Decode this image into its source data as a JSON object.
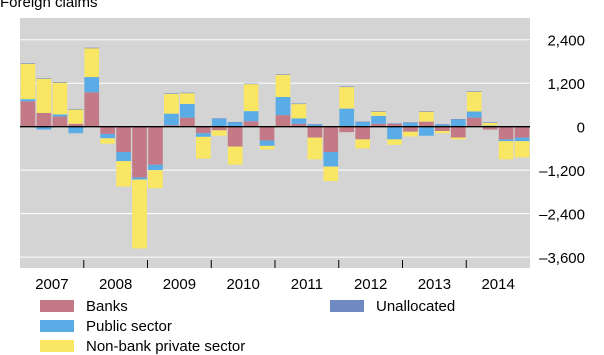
{
  "chart_data": {
    "type": "bar",
    "stacked": true,
    "title": "Foreign claims",
    "xlabel": "",
    "ylabel": "",
    "ylim": [
      -3900,
      3000
    ],
    "y_ticks": [
      2400,
      1200,
      0,
      -1200,
      -2400,
      -3600
    ],
    "y_tick_labels": [
      "2,400",
      "1,200",
      "0",
      "–1,200",
      "–2,400",
      "–3,600"
    ],
    "year_labels": [
      "2007",
      "2008",
      "2009",
      "2010",
      "2011",
      "2012",
      "2013",
      "2014"
    ],
    "grid": true,
    "legend_position": "bottom",
    "categories": [
      "2007 Q1",
      "2007 Q2",
      "2007 Q3",
      "2007 Q4",
      "2008 Q1",
      "2008 Q2",
      "2008 Q3",
      "2008 Q4",
      "2009 Q1",
      "2009 Q2",
      "2009 Q3",
      "2009 Q4",
      "2010 Q1",
      "2010 Q2",
      "2010 Q3",
      "2010 Q4",
      "2011 Q1",
      "2011 Q2",
      "2011 Q3",
      "2011 Q4",
      "2012 Q1",
      "2012 Q2",
      "2012 Q3",
      "2012 Q4",
      "2013 Q1",
      "2013 Q2",
      "2013 Q3",
      "2013 Q4",
      "2014 Q1",
      "2014 Q2",
      "2014 Q3",
      "2014 Q4"
    ],
    "series": [
      {
        "name": "Banks",
        "color": "#c47a86",
        "values": [
          700,
          380,
          280,
          80,
          950,
          -200,
          -700,
          -1400,
          -1050,
          40,
          250,
          -180,
          -100,
          -550,
          150,
          -380,
          320,
          80,
          -300,
          -700,
          -150,
          -350,
          80,
          80,
          -140,
          140,
          -120,
          -300,
          250,
          -80,
          -350,
          -300
        ]
      },
      {
        "name": "Public sector",
        "color": "#5aace6",
        "values": [
          60,
          -80,
          60,
          -180,
          420,
          -120,
          -250,
          -60,
          -150,
          320,
          380,
          -100,
          220,
          120,
          280,
          -150,
          500,
          150,
          60,
          -400,
          500,
          130,
          220,
          -350,
          110,
          -250,
          60,
          200,
          170,
          30,
          -50,
          -100
        ]
      },
      {
        "name": "Non-bank private sector",
        "color": "#f9e763",
        "values": [
          980,
          950,
          880,
          400,
          800,
          -150,
          -700,
          -1900,
          -500,
          550,
          300,
          -600,
          -150,
          -500,
          750,
          -100,
          620,
          400,
          -600,
          -400,
          600,
          -250,
          120,
          -150,
          -130,
          280,
          -60,
          -50,
          550,
          80,
          -500,
          -450
        ]
      },
      {
        "name": "Unallocated",
        "color": "#6f8ac3",
        "values": [
          10,
          10,
          10,
          10,
          10,
          10,
          10,
          10,
          10,
          10,
          10,
          10,
          10,
          10,
          10,
          10,
          10,
          10,
          10,
          10,
          10,
          10,
          10,
          10,
          10,
          10,
          10,
          10,
          10,
          10,
          10,
          10
        ]
      }
    ],
    "legend": [
      {
        "name": "Banks",
        "color": "#c47a86"
      },
      {
        "name": "Public sector",
        "color": "#5aace6"
      },
      {
        "name": "Non-bank private sector",
        "color": "#f9e763"
      },
      {
        "name": "Unallocated",
        "color": "#6f8ac3"
      }
    ]
  }
}
